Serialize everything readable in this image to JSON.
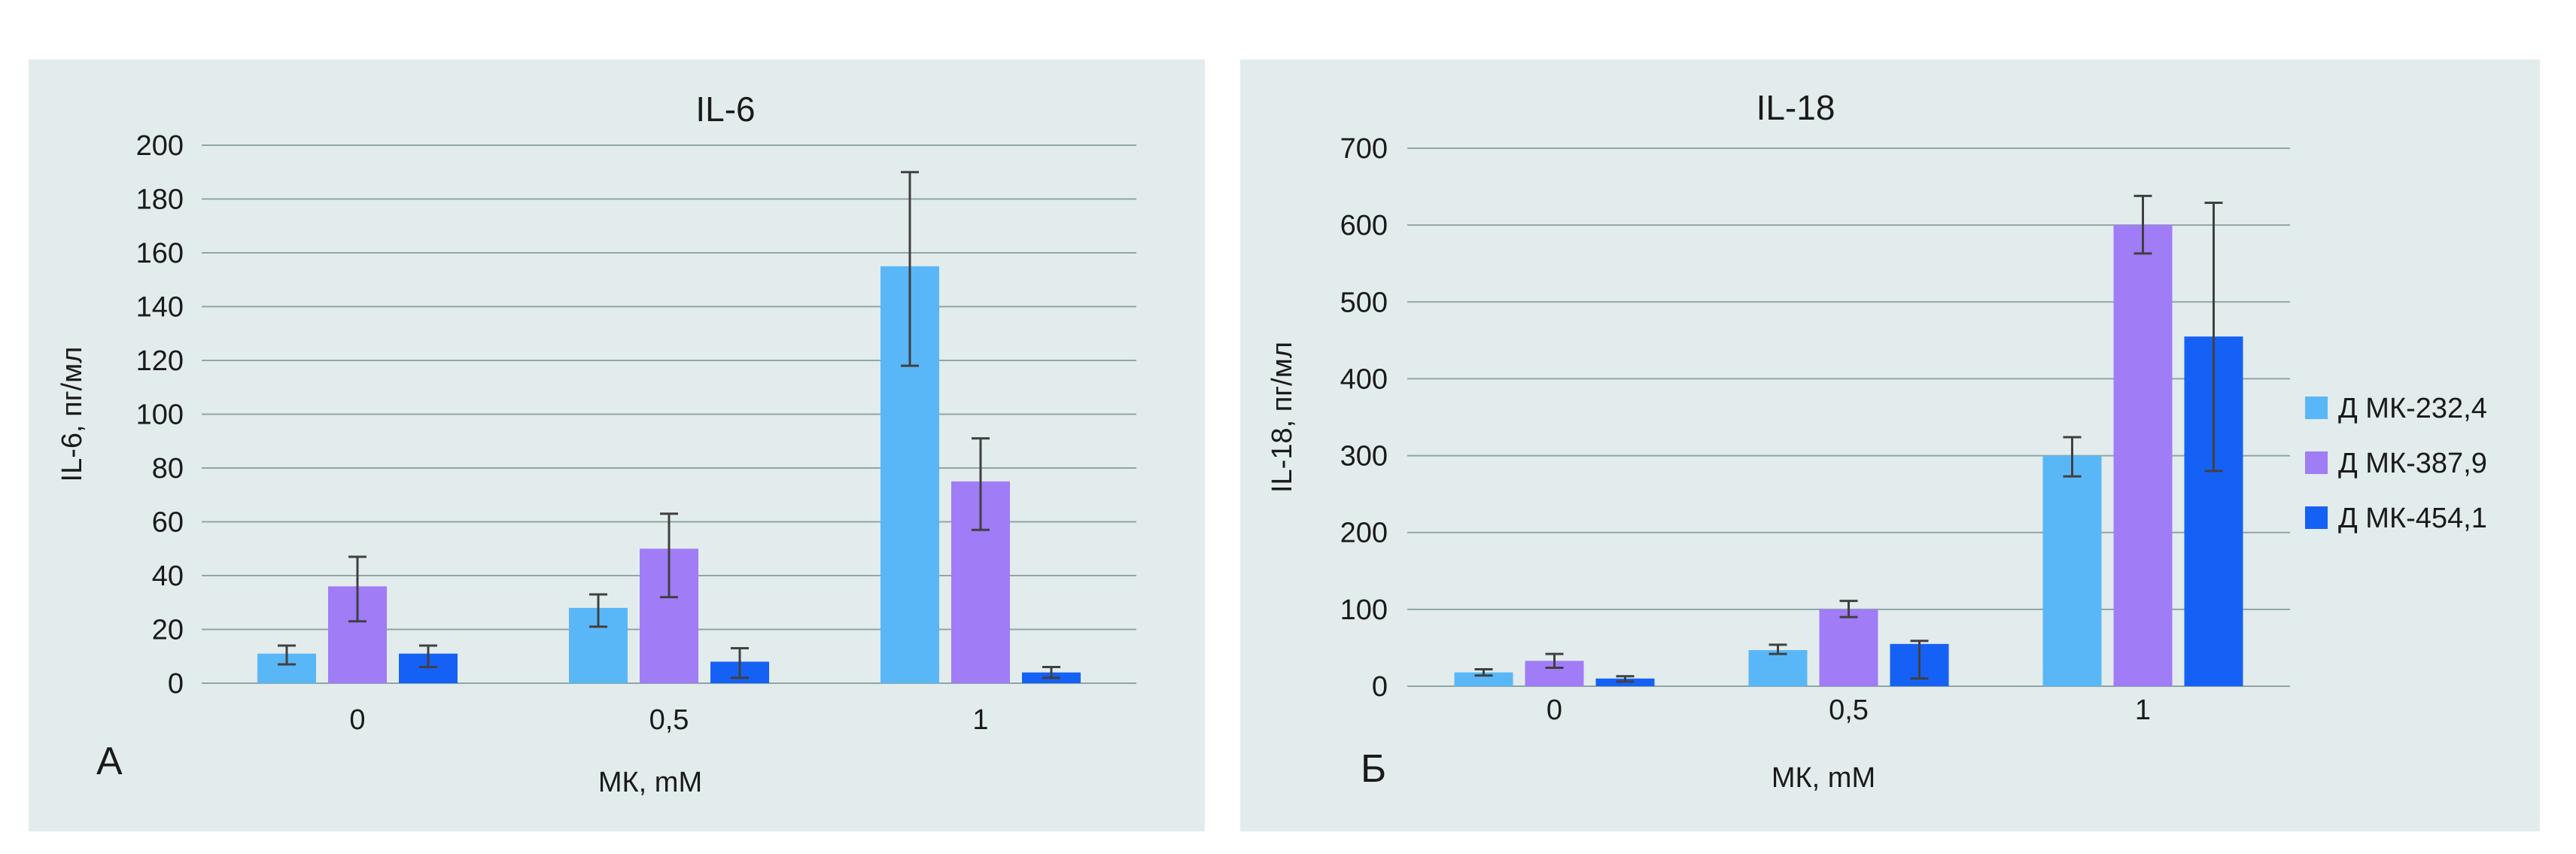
{
  "chart_data": [
    {
      "type": "bar",
      "title": "IL-6",
      "panel_letter": "А",
      "xlabel": "МК, mM",
      "ylabel": "IL-6, пг/мл",
      "categories": [
        "0",
        "0,5",
        "1"
      ],
      "ylim": [
        0,
        200
      ],
      "yticks": [
        "0",
        "20",
        "40",
        "60",
        "80",
        "100",
        "120",
        "140",
        "160",
        "180",
        "200"
      ],
      "grid": true,
      "series": [
        {
          "name": "Д МК-232,4",
          "color": "#5ab7f7",
          "values": [
            11,
            28,
            155
          ],
          "err_low": [
            7,
            21,
            118
          ],
          "err_high": [
            14,
            33,
            190
          ]
        },
        {
          "name": "Д МК-387,9",
          "color": "#a07cf7",
          "values": [
            36,
            50,
            75
          ],
          "err_low": [
            23,
            32,
            57
          ],
          "err_high": [
            47,
            63,
            91
          ]
        },
        {
          "name": "Д МК-454,1",
          "color": "#1661f5",
          "values": [
            11,
            8,
            4
          ],
          "err_low": [
            6,
            2,
            2
          ],
          "err_high": [
            14,
            13,
            6
          ]
        }
      ]
    },
    {
      "type": "bar",
      "title": "IL-18",
      "panel_letter": "Б",
      "xlabel": "МК, mM",
      "ylabel": "IL-18, пг/мл",
      "categories": [
        "0",
        "0,5",
        "1"
      ],
      "ylim": [
        0,
        700
      ],
      "yticks": [
        "0",
        "100",
        "200",
        "300",
        "400",
        "500",
        "600",
        "700"
      ],
      "grid": true,
      "legend": "right",
      "series": [
        {
          "name": "Д МК-232,4",
          "color": "#5ab7f7",
          "values": [
            18,
            47,
            300
          ],
          "err_low": [
            14,
            42,
            273
          ],
          "err_high": [
            22,
            54,
            324
          ]
        },
        {
          "name": "Д МК-387,9",
          "color": "#a07cf7",
          "values": [
            33,
            100,
            600
          ],
          "err_low": [
            24,
            90,
            563
          ],
          "err_high": [
            42,
            111,
            638
          ]
        },
        {
          "name": "Д МК-454,1",
          "color": "#1661f5",
          "values": [
            10,
            55,
            455
          ],
          "err_low": [
            6,
            10,
            280
          ],
          "err_high": [
            13,
            59,
            629
          ]
        }
      ]
    }
  ]
}
